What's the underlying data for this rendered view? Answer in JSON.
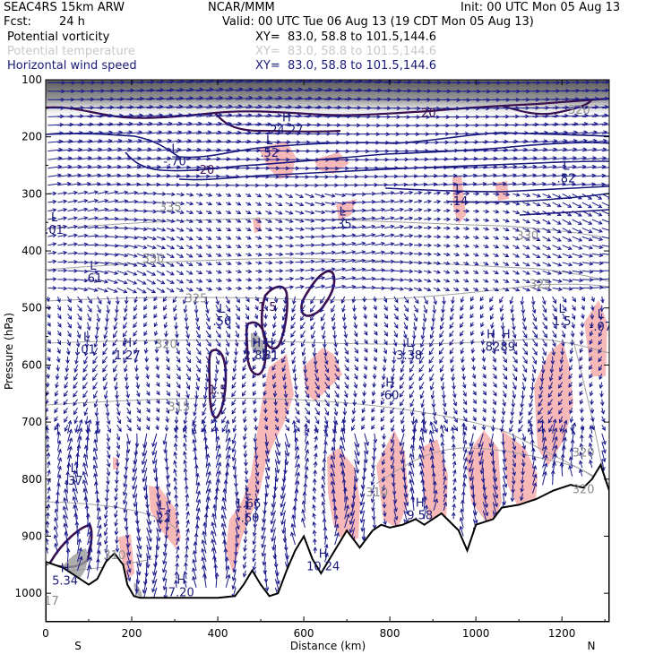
{
  "header": {
    "model": "SEAC4RS 15km ARW",
    "org": "NCAR/MMM",
    "init": "Init: 00 UTC Mon 05 Aug 13",
    "fcst_label": "Fcst:",
    "fcst_value": "24 h",
    "valid": "Valid: 00 UTC Tue 06 Aug 13 (19 CDT Mon 05 Aug 13)"
  },
  "legend": [
    {
      "name": "Potential vorticity",
      "xy": "XY=  83.0, 58.8 to 101.5,144.6",
      "color": "#000000",
      "xy_color": "#000000"
    },
    {
      "name": "Potential temperature",
      "xy": "XY=  83.0, 58.8 to 101.5,144.6",
      "color": "#c8c8c8",
      "xy_color": "#c8c8c8"
    },
    {
      "name": "Horizontal wind speed",
      "xy": "XY=  83.0, 58.8 to 101.5,144.6",
      "color": "#1a1a7a",
      "xy_color": "#1a1a7a"
    }
  ],
  "colors": {
    "wind_vectors": "#1a1a8c",
    "pv_contour": "#3a1050",
    "theta_contour": "#a0a0a0",
    "pv_shading": "#f7b8b8",
    "terrain": "#000000"
  },
  "chart_data": {
    "type": "vertical cross-section",
    "xlabel": "Distance (km)",
    "ylabel": "Pressure (hPa)",
    "x_ticks": [
      0,
      200,
      400,
      600,
      800,
      1000,
      1200
    ],
    "y_ticks": [
      100,
      200,
      300,
      400,
      500,
      600,
      700,
      800,
      900,
      1000
    ],
    "xlim": [
      0,
      1310
    ],
    "ylim": [
      1050,
      100
    ],
    "x_end_labels": {
      "left": "S",
      "right": "N"
    },
    "theta_labels": [
      {
        "text": "335",
        "x": 290,
        "p": 330
      },
      {
        "text": "330",
        "x": 250,
        "p": 420
      },
      {
        "text": "330",
        "x": 1120,
        "p": 380
      },
      {
        "text": "325",
        "x": 350,
        "p": 490
      },
      {
        "text": "325",
        "x": 1150,
        "p": 465
      },
      {
        "text": "320",
        "x": 280,
        "p": 570
      },
      {
        "text": "315",
        "x": 310,
        "p": 680
      },
      {
        "text": "310",
        "x": 160,
        "p": 940
      },
      {
        "text": "310",
        "x": 770,
        "p": 830
      },
      {
        "text": "320",
        "x": 1240,
        "p": 160
      },
      {
        "text": "320",
        "x": 1250,
        "p": 760
      },
      {
        "text": "320",
        "x": 1250,
        "p": 825
      },
      {
        "text": "317",
        "x": 5,
        "p": 1020
      }
    ],
    "extrema": [
      {
        "kind": "H",
        "value": "24.27",
        "x": 560,
        "p": 195
      },
      {
        "kind": "L",
        "value": ".52",
        "x": 520,
        "p": 235
      },
      {
        "kind": "L",
        "value": "-.70",
        "x": 300,
        "p": 250
      },
      {
        "kind": "L",
        "value": ".14",
        "x": 960,
        "p": 320
      },
      {
        "kind": "L",
        "value": ".82",
        "x": 1210,
        "p": 280
      },
      {
        "kind": "L",
        "value": ".01",
        "x": 20,
        "p": 370
      },
      {
        "kind": "L",
        "value": ".35",
        "x": 690,
        "p": 360
      },
      {
        "kind": "L",
        "value": ".61",
        "x": 110,
        "p": 455
      },
      {
        "kind": "L",
        "value": ".56",
        "x": 410,
        "p": 530
      },
      {
        "kind": "L",
        "value": "1.5",
        "x": 1200,
        "p": 530
      },
      {
        "kind": "L",
        "value": "-.07",
        "x": 1290,
        "p": 540
      },
      {
        "kind": "L",
        "value": ".01",
        "x": 95,
        "p": 580
      },
      {
        "kind": "H",
        "value": "1.27",
        "x": 190,
        "p": 590
      },
      {
        "kind": "H",
        "value": "2.86",
        "x": 490,
        "p": 590
      },
      {
        "kind": "H",
        "value": ".81",
        "x": 520,
        "p": 590
      },
      {
        "kind": "L",
        "value": "3.38",
        "x": 845,
        "p": 590
      },
      {
        "kind": "H",
        "value": ".82",
        "x": 1035,
        "p": 575
      },
      {
        "kind": "H",
        "value": ".89",
        "x": 1070,
        "p": 575
      },
      {
        "kind": "H",
        "value": ".60",
        "x": 800,
        "p": 660
      },
      {
        "kind": "L",
        "value": ".37",
        "x": 65,
        "p": 810
      },
      {
        "kind": "L",
        "value": "1.66",
        "x": 470,
        "p": 850
      },
      {
        "kind": "L",
        "value": "-.60",
        "x": 470,
        "p": 875
      },
      {
        "kind": "L",
        "value": ".22",
        "x": 270,
        "p": 875
      },
      {
        "kind": "H",
        "value": "9.58",
        "x": 870,
        "p": 870
      },
      {
        "kind": "H",
        "value": "10.24",
        "x": 645,
        "p": 960
      },
      {
        "kind": "H",
        "value": "5.34",
        "x": 45,
        "p": 985
      },
      {
        "kind": "H",
        "value": "7.20",
        "x": 315,
        "p": 1005
      }
    ],
    "pv_contour_labels": [
      {
        "text": "1.5",
        "x": 515,
        "p": 505
      },
      {
        "text": "1.5",
        "x": 400,
        "p": 650
      },
      {
        "text": "-20",
        "x": 370,
        "p": 265
      },
      {
        "text": "20",
        "x": 890,
        "p": 165
      }
    ],
    "terrain_surface_hpa": [
      [
        0,
        945
      ],
      [
        40,
        955
      ],
      [
        80,
        975
      ],
      [
        100,
        985
      ],
      [
        120,
        975
      ],
      [
        140,
        945
      ],
      [
        160,
        930
      ],
      [
        180,
        950
      ],
      [
        190,
        985
      ],
      [
        205,
        1005
      ],
      [
        220,
        1008
      ],
      [
        300,
        1008
      ],
      [
        400,
        1008
      ],
      [
        440,
        1005
      ],
      [
        460,
        985
      ],
      [
        480,
        960
      ],
      [
        500,
        985
      ],
      [
        520,
        1005
      ],
      [
        540,
        1000
      ],
      [
        560,
        960
      ],
      [
        580,
        925
      ],
      [
        600,
        900
      ],
      [
        620,
        940
      ],
      [
        640,
        965
      ],
      [
        660,
        940
      ],
      [
        680,
        915
      ],
      [
        700,
        890
      ],
      [
        730,
        920
      ],
      [
        760,
        890
      ],
      [
        780,
        880
      ],
      [
        800,
        885
      ],
      [
        830,
        880
      ],
      [
        860,
        870
      ],
      [
        880,
        880
      ],
      [
        920,
        860
      ],
      [
        960,
        890
      ],
      [
        980,
        925
      ],
      [
        1000,
        880
      ],
      [
        1040,
        870
      ],
      [
        1060,
        850
      ],
      [
        1100,
        845
      ],
      [
        1140,
        835
      ],
      [
        1180,
        820
      ],
      [
        1220,
        810
      ],
      [
        1250,
        815
      ],
      [
        1270,
        800
      ],
      [
        1290,
        775
      ],
      [
        1310,
        820
      ]
    ]
  }
}
